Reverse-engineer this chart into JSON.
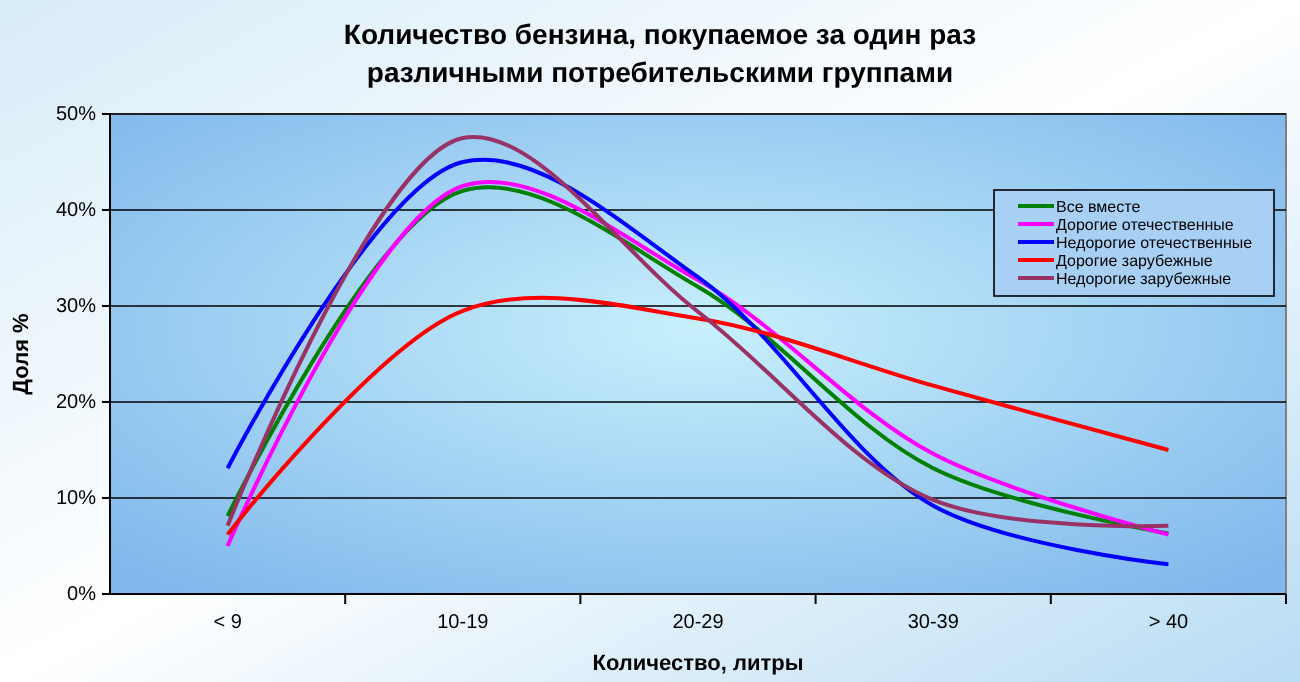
{
  "chart_data": {
    "type": "line",
    "title": "Количество бензина, покупаемое за один раз\nразличными потребительскими группами",
    "xlabel": "Количество, литры",
    "ylabel": "Доля %",
    "categories": [
      "< 9",
      "10-19",
      "20-29",
      "30-39",
      "> 40"
    ],
    "series": [
      {
        "name": "Все вместе",
        "color": "#008000",
        "values": [
          8.1,
          42,
          32,
          13.1,
          6.3
        ]
      },
      {
        "name": "Дорогие отечественные",
        "color": "#ff00ff",
        "values": [
          5,
          42.5,
          32.7,
          14.6,
          6.2
        ]
      },
      {
        "name": "Недорогие отечественные",
        "color": "#0000ff",
        "values": [
          13.1,
          45,
          33,
          9.2,
          3.1
        ]
      },
      {
        "name": "Дорогие зарубежные",
        "color": "#ff0000",
        "values": [
          6.2,
          29.5,
          28.7,
          21.7,
          15
        ]
      },
      {
        "name": "Недорогие зарубежные",
        "color": "#993366",
        "values": [
          7.1,
          47.5,
          29.4,
          9.8,
          7.1
        ]
      }
    ],
    "ylim": [
      0,
      50
    ],
    "yticks": [
      {
        "value": 0,
        "label": "0%"
      },
      {
        "value": 10,
        "label": "10%"
      },
      {
        "value": 20,
        "label": "20%"
      },
      {
        "value": 30,
        "label": "30%"
      },
      {
        "value": 40,
        "label": "40%"
      },
      {
        "value": 50,
        "label": "50%"
      }
    ],
    "grid": "y",
    "legend": "top right",
    "marker": "none",
    "line_style": "solid"
  }
}
